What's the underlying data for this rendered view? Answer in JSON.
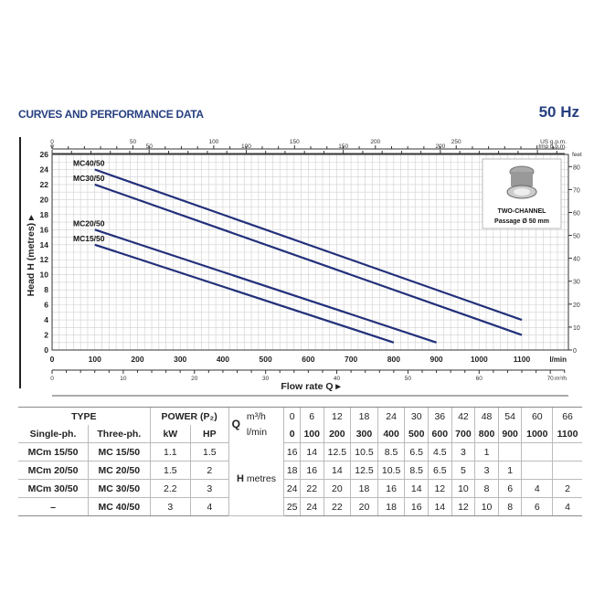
{
  "header": {
    "title": "CURVES AND PERFORMANCE DATA",
    "frequency": "50 Hz"
  },
  "chart_data": {
    "type": "line",
    "xlabel": "Flow rate Q ▸",
    "ylabel": "Head H (metres) ▸",
    "xlim": [
      0,
      1210
    ],
    "ylim": [
      0,
      26
    ],
    "grid": true,
    "x_unit": "l/min",
    "y2_unit": "feet",
    "x_ticks": [
      "0",
      "100",
      "200",
      "300",
      "400",
      "500",
      "600",
      "700",
      "800",
      "900",
      "1000",
      "1100"
    ],
    "y_ticks": [
      "0",
      "2",
      "4",
      "6",
      "8",
      "10",
      "12",
      "14",
      "16",
      "18",
      "20",
      "22",
      "24",
      "26"
    ],
    "y2_ticks": [
      "0",
      "10",
      "20",
      "30",
      "40",
      "50",
      "60",
      "70",
      "80"
    ],
    "us_gpm": {
      "unit": "US g.p.m.",
      "ticks": [
        "0",
        "50",
        "100",
        "150",
        "200",
        "250"
      ]
    },
    "imp_gpm": {
      "unit": "Imp g.p.m.",
      "ticks": [
        "0",
        "50",
        "100",
        "150",
        "200"
      ]
    },
    "m3h": {
      "unit": "m³/h",
      "ticks": [
        "0",
        "10",
        "20",
        "30",
        "40",
        "50",
        "60",
        "70"
      ]
    },
    "series": [
      {
        "name": "MC40/50",
        "x": [
          100,
          1100
        ],
        "y": [
          24,
          4
        ]
      },
      {
        "name": "MC30/50",
        "x": [
          100,
          1100
        ],
        "y": [
          22,
          2
        ]
      },
      {
        "name": "MC20/50",
        "x": [
          100,
          900
        ],
        "y": [
          16,
          1
        ]
      },
      {
        "name": "MC15/50",
        "x": [
          100,
          800
        ],
        "y": [
          14,
          1
        ]
      }
    ],
    "line_color": "#22307a",
    "inset": {
      "line1": "TWO-CHANNEL",
      "line2": "Passage Ø 50 mm"
    }
  },
  "table": {
    "type": "TYPE",
    "power": "POWER (P₂)",
    "q": "Q",
    "m3h": "m³/h",
    "lmin": "l/min",
    "single": "Single-ph.",
    "three": "Three-ph.",
    "kw": "kW",
    "hp": "HP",
    "h": "H",
    "metres": "metres",
    "m3h_values": [
      "0",
      "6",
      "12",
      "18",
      "24",
      "30",
      "36",
      "42",
      "48",
      "54",
      "60",
      "66"
    ],
    "lmin_values": [
      "0",
      "100",
      "200",
      "300",
      "400",
      "500",
      "600",
      "700",
      "800",
      "900",
      "1000",
      "1100"
    ],
    "rows": [
      {
        "single": "MCm 15/50",
        "three": "MC 15/50",
        "kw": "1.1",
        "hp": "1.5",
        "h": [
          "16",
          "14",
          "12.5",
          "10.5",
          "8.5",
          "6.5",
          "4.5",
          "3",
          "1",
          "",
          "",
          ""
        ]
      },
      {
        "single": "MCm 20/50",
        "three": "MC 20/50",
        "kw": "1.5",
        "hp": "2",
        "h": [
          "18",
          "16",
          "14",
          "12.5",
          "10.5",
          "8.5",
          "6.5",
          "5",
          "3",
          "1",
          "",
          ""
        ]
      },
      {
        "single": "MCm 30/50",
        "three": "MC 30/50",
        "kw": "2.2",
        "hp": "3",
        "h": [
          "24",
          "22",
          "20",
          "18",
          "16",
          "14",
          "12",
          "10",
          "8",
          "6",
          "4",
          "2"
        ]
      },
      {
        "single": "–",
        "three": "MC 40/50",
        "kw": "3",
        "hp": "4",
        "h": [
          "25",
          "24",
          "22",
          "20",
          "18",
          "16",
          "14",
          "12",
          "10",
          "8",
          "6",
          "4"
        ]
      }
    ]
  }
}
